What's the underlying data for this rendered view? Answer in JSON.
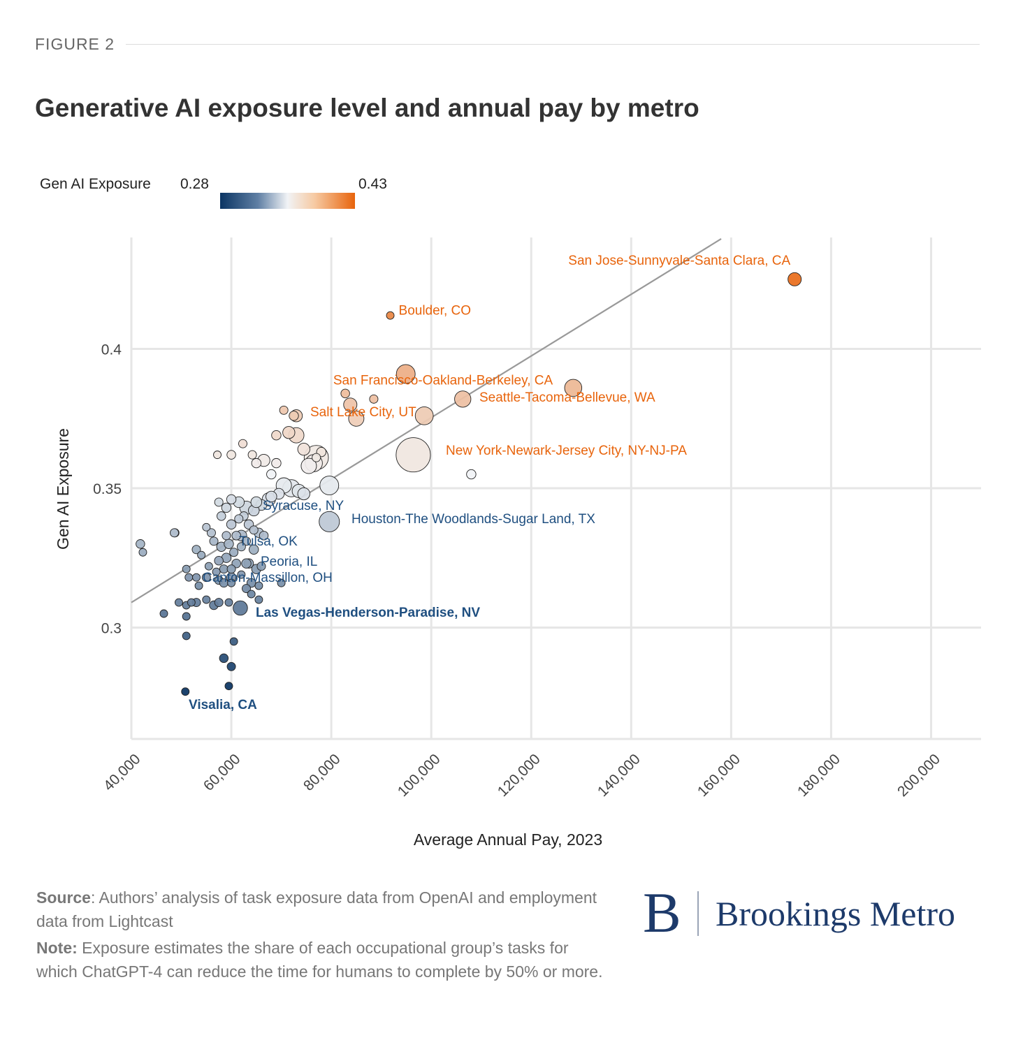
{
  "figure_label": "FIGURE 2",
  "title": "Generative AI exposure level and annual pay by metro",
  "legend": {
    "title": "Gen AI Exposure",
    "min_label": "0.28",
    "max_label": "0.43"
  },
  "colors": {
    "low": "#0b3563",
    "mid": "#f1f3f6",
    "high": "#e8640c",
    "grid": "#e6e6e6",
    "trend": "#999999",
    "label_low": "#1f4f80",
    "label_high": "#e8640c"
  },
  "chart_data": {
    "type": "scatter",
    "title": "Generative AI exposure level and annual pay by metro",
    "xlabel": "Average Annual Pay, 2023",
    "ylabel": "Gen AI Exposure",
    "xlim": [
      40000,
      210000
    ],
    "ylim": [
      0.26,
      0.44
    ],
    "x_ticks": [
      40000,
      60000,
      80000,
      100000,
      120000,
      140000,
      160000,
      180000,
      200000
    ],
    "x_tick_labels": [
      "40,000",
      "60,000",
      "80,000",
      "100,000",
      "120,000",
      "140,000",
      "160,000",
      "180,000",
      "200,000"
    ],
    "y_ticks": [
      0.3,
      0.35,
      0.4
    ],
    "y_tick_labels": [
      "0.3",
      "0.35",
      "0.4"
    ],
    "grid": true,
    "color_scale": "diverging blue-white-orange by exposure, 0.28 to 0.43",
    "trend_line": {
      "x": [
        40000,
        158000
      ],
      "y": [
        0.309,
        0.4395
      ]
    },
    "labeled_points": [
      {
        "label": "San Jose-Sunnyvale-Santa Clara, CA",
        "x": 172700,
        "y": 0.425,
        "size": 3
      },
      {
        "label": "Boulder, CO",
        "x": 91800,
        "y": 0.412,
        "size": 1
      },
      {
        "label": "San Francisco-Oakland-Berkeley, CA",
        "x": 94900,
        "y": 0.391,
        "size": 6
      },
      {
        "label": "Seattle-Tacoma-Bellevue, WA",
        "x": 128400,
        "y": 0.386,
        "size": 5
      },
      {
        "label": "Salt Lake City, UT",
        "x": 85000,
        "y": 0.375,
        "size": 4
      },
      {
        "label": "New York-Newark-Jersey City, NY-NJ-PA",
        "x": 96400,
        "y": 0.362,
        "size": 20
      },
      {
        "label": "Syracuse, NY",
        "x": 65000,
        "y": 0.345,
        "size": 2
      },
      {
        "label": "Houston-The Woodlands-Sugar Land, TX",
        "x": 79600,
        "y": 0.338,
        "size": 7
      },
      {
        "label": "Tulsa, OK",
        "x": 62000,
        "y": 0.333,
        "size": 2
      },
      {
        "label": "Peoria, IL",
        "x": 63000,
        "y": 0.323,
        "size": 1.5
      },
      {
        "label": "Canton-Massillon, OH",
        "x": 60000,
        "y": 0.318,
        "size": 1.5
      },
      {
        "label": "Las Vegas-Henderson-Paradise, NV",
        "x": 61800,
        "y": 0.307,
        "size": 3.5
      },
      {
        "label": "Visalia, CA",
        "x": 50800,
        "y": 0.277,
        "size": 1
      }
    ],
    "other_points": [
      [
        106300,
        0.382,
        4.5
      ],
      [
        98600,
        0.376,
        5.5
      ],
      [
        108000,
        0.355,
        1.5
      ],
      [
        79600,
        0.351,
        6
      ],
      [
        77000,
        0.361,
        10
      ],
      [
        76500,
        0.359,
        5
      ],
      [
        75500,
        0.358,
        4
      ],
      [
        74500,
        0.364,
        2.5
      ],
      [
        73000,
        0.369,
        4
      ],
      [
        71500,
        0.37,
        2.5
      ],
      [
        73000,
        0.376,
        2.5
      ],
      [
        72500,
        0.376,
        1.5
      ],
      [
        70500,
        0.378,
        1.2
      ],
      [
        69000,
        0.369,
        1.5
      ],
      [
        78000,
        0.363,
        1.5
      ],
      [
        77000,
        0.361,
        1.2
      ],
      [
        82800,
        0.384,
        1.3
      ],
      [
        83800,
        0.38,
        3
      ],
      [
        88500,
        0.382,
        1.2
      ],
      [
        62300,
        0.366,
        1.2
      ],
      [
        60000,
        0.362,
        1.3
      ],
      [
        57200,
        0.362,
        1
      ],
      [
        64200,
        0.362,
        1.2
      ],
      [
        65000,
        0.359,
        1.5
      ],
      [
        66500,
        0.36,
        2.5
      ],
      [
        69000,
        0.359,
        1.5
      ],
      [
        68000,
        0.355,
        1.5
      ],
      [
        70500,
        0.351,
        4
      ],
      [
        72000,
        0.35,
        5
      ],
      [
        73500,
        0.349,
        3
      ],
      [
        74500,
        0.348,
        2.5
      ],
      [
        69500,
        0.348,
        2
      ],
      [
        68000,
        0.347,
        2
      ],
      [
        67500,
        0.346,
        3
      ],
      [
        66000,
        0.344,
        2
      ],
      [
        64500,
        0.342,
        2
      ],
      [
        63000,
        0.343,
        3
      ],
      [
        61500,
        0.345,
        2
      ],
      [
        60000,
        0.346,
        1.5
      ],
      [
        59000,
        0.343,
        1.5
      ],
      [
        57500,
        0.345,
        1.2
      ],
      [
        58000,
        0.34,
        1.3
      ],
      [
        60000,
        0.337,
        1.5
      ],
      [
        61500,
        0.339,
        1.2
      ],
      [
        62500,
        0.34,
        1.3
      ],
      [
        63500,
        0.337,
        1.5
      ],
      [
        64500,
        0.335,
        1.2
      ],
      [
        65500,
        0.334,
        1.5
      ],
      [
        66500,
        0.333,
        1.3
      ],
      [
        63000,
        0.331,
        1.2
      ],
      [
        61000,
        0.333,
        1.3
      ],
      [
        59000,
        0.333,
        1.2
      ],
      [
        58000,
        0.329,
        1.5
      ],
      [
        56500,
        0.331,
        1.2
      ],
      [
        56000,
        0.334,
        1.2
      ],
      [
        55000,
        0.336,
        1
      ],
      [
        59000,
        0.325,
        1.5
      ],
      [
        59500,
        0.33,
        1.5
      ],
      [
        60500,
        0.327,
        1.2
      ],
      [
        62000,
        0.329,
        1.2
      ],
      [
        64500,
        0.328,
        1.5
      ],
      [
        57500,
        0.324,
        1.3
      ],
      [
        58500,
        0.321,
        1.2
      ],
      [
        60000,
        0.321,
        1.2
      ],
      [
        61000,
        0.323,
        1.3
      ],
      [
        63500,
        0.323,
        1.5
      ],
      [
        65000,
        0.321,
        1.5
      ],
      [
        66000,
        0.322,
        1.2
      ],
      [
        54000,
        0.326,
        1
      ],
      [
        53000,
        0.328,
        1.2
      ],
      [
        51000,
        0.321,
        1
      ],
      [
        51500,
        0.318,
        1
      ],
      [
        53000,
        0.318,
        1
      ],
      [
        53500,
        0.315,
        1
      ],
      [
        55000,
        0.318,
        1.2
      ],
      [
        55500,
        0.322,
        1
      ],
      [
        57000,
        0.32,
        1
      ],
      [
        57500,
        0.317,
        1.2
      ],
      [
        58500,
        0.316,
        1.2
      ],
      [
        60000,
        0.316,
        1
      ],
      [
        62000,
        0.319,
        1
      ],
      [
        64000,
        0.316,
        1.3
      ],
      [
        65500,
        0.315,
        1
      ],
      [
        63000,
        0.314,
        1.2
      ],
      [
        64000,
        0.312,
        1
      ],
      [
        70000,
        0.316,
        1
      ],
      [
        41800,
        0.33,
        1.3
      ],
      [
        42300,
        0.327,
        1
      ],
      [
        48700,
        0.334,
        1.2
      ],
      [
        48600,
        0.334,
        1.2
      ],
      [
        49500,
        0.309,
        1
      ],
      [
        51000,
        0.308,
        1
      ],
      [
        52000,
        0.309,
        1
      ],
      [
        53000,
        0.309,
        1.2
      ],
      [
        55000,
        0.31,
        1
      ],
      [
        56500,
        0.308,
        1.3
      ],
      [
        57500,
        0.309,
        1.2
      ],
      [
        59500,
        0.309,
        1
      ],
      [
        65500,
        0.31,
        1
      ],
      [
        46500,
        0.305,
        1
      ],
      [
        51000,
        0.304,
        1
      ],
      [
        51000,
        0.297,
        1
      ],
      [
        60500,
        0.295,
        1
      ],
      [
        58500,
        0.289,
        1.3
      ],
      [
        60000,
        0.286,
        1.2
      ],
      [
        59500,
        0.279,
        1
      ]
    ]
  }
}
